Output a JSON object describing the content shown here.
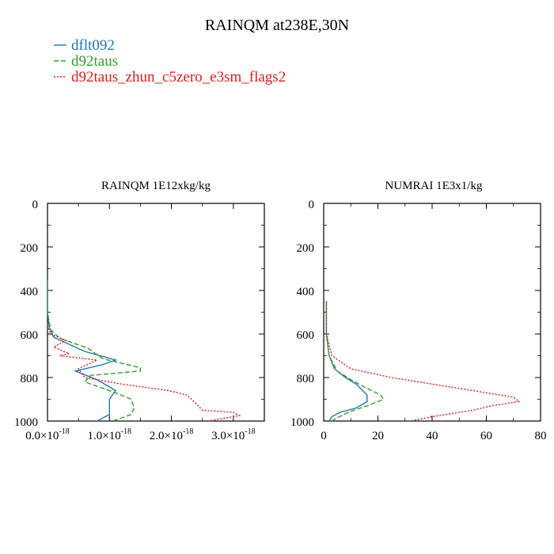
{
  "title": "RAINQM at238E,30N",
  "legend": [
    {
      "name": "dflt092",
      "color": "#1f77b4",
      "dash": "solid"
    },
    {
      "name": "d92taus",
      "color": "#2ca02c",
      "dash": "dashed"
    },
    {
      "name": "d92taus_zhun_c5zero_e3sm_flags2",
      "color": "#e31a1c",
      "dash": "dotted"
    }
  ],
  "chart_data": [
    {
      "type": "line",
      "title": "RAINQM  1E12xkg/kg",
      "xlabel": "",
      "ylabel": "",
      "xlim": [
        0,
        3.5e-18
      ],
      "ylim": [
        1000,
        0
      ],
      "x_ticks": [
        0,
        1e-18,
        2e-18,
        3e-18
      ],
      "x_tick_labels": [
        {
          "mant": "0.0×10",
          "exp": "-18"
        },
        {
          "mant": "1.0×10",
          "exp": "-18"
        },
        {
          "mant": "2.0×10",
          "exp": "-18"
        },
        {
          "mant": "3.0×10",
          "exp": "-18"
        }
      ],
      "y_ticks": [
        0,
        200,
        400,
        600,
        800,
        1000
      ],
      "y_tick_labels": [
        "0",
        "200",
        "400",
        "600",
        "800",
        "1000"
      ],
      "series": [
        {
          "name": "dflt092",
          "color": "#1f77b4",
          "dash": "solid",
          "x": [
            0,
            0,
            3e-20,
            1e-19,
            6e-19,
            1.1e-18,
            9e-19,
            4.5e-19,
            8e-19,
            1.1e-18,
            1e-18,
            1e-18,
            8e-19
          ],
          "y": [
            350,
            500,
            570,
            615,
            680,
            720,
            740,
            770,
            810,
            860,
            900,
            970,
            1000
          ]
        },
        {
          "name": "d92taus",
          "color": "#2ca02c",
          "dash": "dashed",
          "x": [
            0,
            0,
            5e-20,
            2e-19,
            6.5e-19,
            9e-19,
            1.5e-18,
            1.5e-18,
            7e-19,
            6e-19,
            1.1e-18,
            1.35e-18,
            1.4e-18,
            1.35e-18,
            1.05e-18
          ],
          "y": [
            350,
            500,
            580,
            620,
            665,
            715,
            755,
            770,
            790,
            820,
            870,
            900,
            940,
            970,
            1000
          ]
        },
        {
          "name": "d92taus_zhun_c5zero_e3sm_flags2",
          "color": "#e31a1c",
          "dash": "dotted",
          "x": [
            0,
            5e-20,
            3e-19,
            1e-19,
            3.5e-19,
            2e-19,
            8e-19,
            5e-19,
            6e-19,
            1.2e-18,
            1.95e-18,
            2.25e-18,
            2.4e-18,
            2.5e-18,
            3e-18,
            3.1e-18,
            2.6e-18
          ],
          "y": [
            560,
            600,
            630,
            660,
            690,
            700,
            720,
            760,
            800,
            830,
            860,
            880,
            920,
            950,
            960,
            975,
            1000
          ]
        }
      ]
    },
    {
      "type": "line",
      "title": "NUMRAI  1E3x1/kg",
      "xlabel": "",
      "ylabel": "",
      "xlim": [
        0,
        80
      ],
      "ylim": [
        1000,
        0
      ],
      "x_ticks": [
        0,
        20,
        40,
        60,
        80
      ],
      "x_tick_labels": [
        "0",
        "20",
        "40",
        "60",
        "80"
      ],
      "y_ticks": [
        0,
        200,
        400,
        600,
        800,
        1000
      ],
      "y_tick_labels": [
        "0",
        "200",
        "400",
        "600",
        "800",
        "1000"
      ],
      "series": [
        {
          "name": "dflt092",
          "color": "#1f77b4",
          "dash": "solid",
          "x": [
            1,
            1,
            2,
            4,
            8,
            12,
            16,
            16,
            12,
            6,
            3,
            2
          ],
          "y": [
            450,
            600,
            700,
            760,
            800,
            830,
            880,
            910,
            940,
            960,
            980,
            1000
          ]
        },
        {
          "name": "d92taus",
          "color": "#2ca02c",
          "dash": "dashed",
          "x": [
            1,
            1,
            2,
            5,
            10,
            16,
            21,
            22,
            16,
            9,
            5,
            3
          ],
          "y": [
            450,
            600,
            700,
            770,
            810,
            850,
            880,
            900,
            930,
            960,
            985,
            1000
          ]
        },
        {
          "name": "d92taus_zhun_c5zero_e3sm_flags2",
          "color": "#e31a1c",
          "dash": "dotted",
          "x": [
            1,
            1,
            3,
            10,
            25,
            45,
            60,
            70,
            72,
            62,
            55,
            40,
            32
          ],
          "y": [
            450,
            600,
            700,
            760,
            800,
            840,
            870,
            890,
            910,
            930,
            950,
            980,
            1000
          ]
        }
      ]
    }
  ]
}
